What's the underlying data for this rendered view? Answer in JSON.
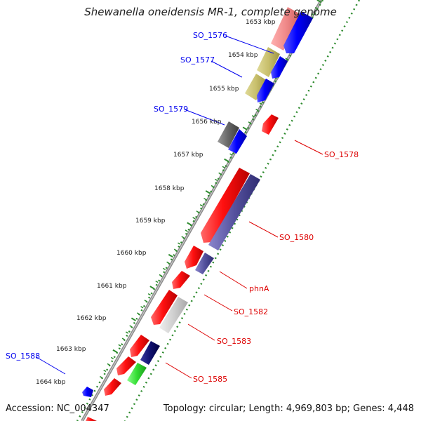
{
  "title": "Shewanella oneidensis MR-1, complete genome",
  "accession": "Accession: NC_004347",
  "topology": "Topology: circular; Length: 4,969,803 bp; Genes: 4,448",
  "colors": {
    "backbone": "#8a8a8a",
    "ticks": "#2e8b2e",
    "label_blue": "#0000ee",
    "label_red": "#dd0000"
  },
  "scale_labels": [
    "1653 kbp",
    "1654 kbp",
    "1655 kbp",
    "1656 kbp",
    "1657 kbp",
    "1658 kbp",
    "1659 kbp",
    "1660 kbp",
    "1661 kbp",
    "1662 kbp",
    "1663 kbp",
    "1664 kbp"
  ],
  "gene_labels": {
    "SO_1576": "SO_1576",
    "SO_1577": "SO_1577",
    "SO_1579": "SO_1579",
    "SO_1588": "SO_1588",
    "SO_1578": "SO_1578",
    "SO_1580": "SO_1580",
    "phnA": "phnA",
    "SO_1582": "SO_1582",
    "SO_1583": "SO_1583",
    "SO_1585": "SO_1585"
  }
}
